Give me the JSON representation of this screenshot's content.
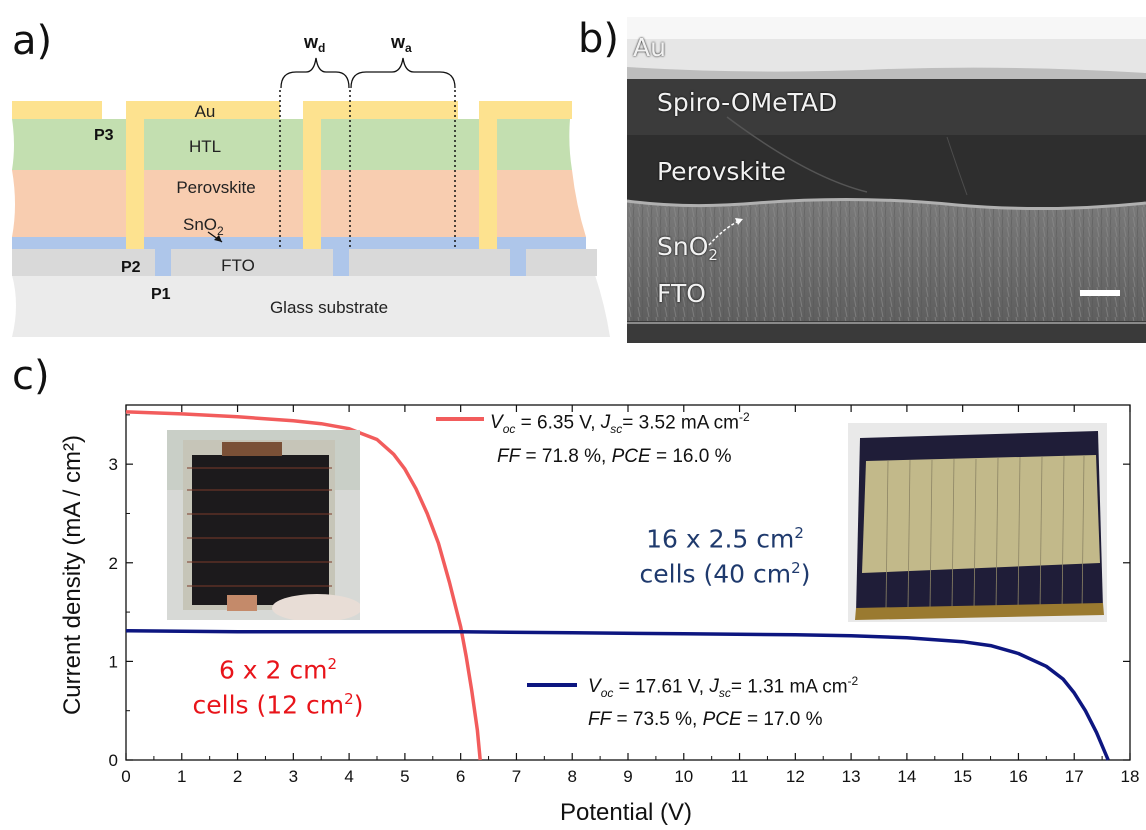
{
  "panels": {
    "a": {
      "letter": "a)",
      "labels": {
        "au": "Au",
        "htl": "HTL",
        "perovskite": "Perovskite",
        "sno2": "SnO",
        "sno2_sub": "2",
        "fto": "FTO",
        "glass": "Glass substrate",
        "p1": "P1",
        "p2": "P2",
        "p3": "P3",
        "wd": "w",
        "wd_sub": "d",
        "wa": "w",
        "wa_sub": "a"
      },
      "colors": {
        "au": "#fde28f",
        "htl": "#c3dfb0",
        "perovskite": "#f8cdb0",
        "sno2": "#aec6ea",
        "fto": "#d9d9d9",
        "glass": "#ebebeb"
      }
    },
    "b": {
      "letter": "b)",
      "labels": {
        "au": "Au",
        "spiro": "Spiro-OMeTAD",
        "perovskite": "Perovskite",
        "sno2": "SnO",
        "sno2_sub": "2",
        "fto": "FTO"
      }
    },
    "c": {
      "letter": "c)",
      "legend": {
        "red_line1": {
          "voc_label": "V",
          "voc_sub": "oc",
          "voc_value": " = 6.35 V, ",
          "jsc_label": "J",
          "jsc_sub": "sc",
          "jsc_value": "= 3.52 mA cm",
          "jsc_exp": "-2"
        },
        "red_line2": {
          "ff_label": "FF",
          "ff_value": " = 71.8 %, ",
          "pce_label": "PCE",
          "pce_value": " = 16.0 %"
        },
        "blue_line1": {
          "voc_label": "V",
          "voc_sub": "oc",
          "voc_value": " = 17.61 V, ",
          "jsc_label": "J",
          "jsc_sub": "sc",
          "jsc_value": "= 1.31 mA cm",
          "jsc_exp": "-2"
        },
        "blue_line2": {
          "ff_label": "FF",
          "ff_value": " = 73.5 %, ",
          "pce_label": "PCE",
          "pce_value": " = 17.0 %"
        }
      },
      "red_label": {
        "line1_a": "6 x 2 cm",
        "line1_exp": "2",
        "line2_a": "cells (12 cm",
        "line2_exp": "2",
        "line2_b": ")"
      },
      "blue_label": {
        "line1_a": "16 x 2.5 cm",
        "line1_exp": "2",
        "line2_a": "cells (40 cm",
        "line2_exp": "2",
        "line2_b": ")"
      }
    }
  },
  "chart_data": {
    "type": "line",
    "xlabel": "Potential (V)",
    "ylabel": "Current density (mA / cm²)",
    "xlim": [
      0,
      18
    ],
    "ylim": [
      0,
      3.6
    ],
    "x_ticks": [
      0,
      1,
      2,
      3,
      4,
      5,
      6,
      7,
      8,
      9,
      10,
      11,
      12,
      13,
      14,
      15,
      16,
      17,
      18
    ],
    "y_ticks": [
      0,
      1,
      2,
      3
    ],
    "series": [
      {
        "color": "#f25c5c",
        "points": [
          [
            0,
            3.53
          ],
          [
            1,
            3.51
          ],
          [
            2,
            3.48
          ],
          [
            3,
            3.44
          ],
          [
            3.5,
            3.41
          ],
          [
            4,
            3.36
          ],
          [
            4.5,
            3.25
          ],
          [
            4.8,
            3.1
          ],
          [
            5.0,
            2.95
          ],
          [
            5.2,
            2.75
          ],
          [
            5.4,
            2.5
          ],
          [
            5.6,
            2.2
          ],
          [
            5.8,
            1.8
          ],
          [
            6.0,
            1.35
          ],
          [
            6.1,
            1.05
          ],
          [
            6.2,
            0.7
          ],
          [
            6.3,
            0.3
          ],
          [
            6.35,
            0
          ]
        ]
      },
      {
        "color": "#0d1680",
        "points": [
          [
            0,
            1.31
          ],
          [
            2,
            1.3
          ],
          [
            4,
            1.3
          ],
          [
            6,
            1.3
          ],
          [
            8,
            1.29
          ],
          [
            10,
            1.28
          ],
          [
            12,
            1.27
          ],
          [
            13,
            1.26
          ],
          [
            14,
            1.24
          ],
          [
            15,
            1.2
          ],
          [
            15.5,
            1.16
          ],
          [
            16,
            1.08
          ],
          [
            16.5,
            0.95
          ],
          [
            16.8,
            0.82
          ],
          [
            17.0,
            0.68
          ],
          [
            17.2,
            0.5
          ],
          [
            17.4,
            0.28
          ],
          [
            17.61,
            0
          ]
        ]
      }
    ],
    "grid": false
  }
}
